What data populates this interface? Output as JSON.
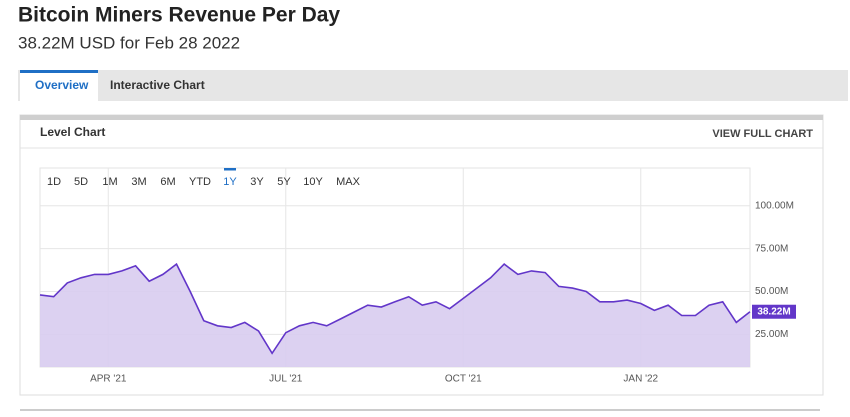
{
  "header": {
    "title": "Bitcoin Miners Revenue Per Day",
    "subtitle": "38.22M USD for Feb 28 2022"
  },
  "tabs": [
    {
      "label": "Overview",
      "active": true
    },
    {
      "label": "Interactive Chart",
      "active": false
    }
  ],
  "panel": {
    "title": "Level Chart",
    "link": "VIEW FULL CHART"
  },
  "range_buttons": {
    "labels": [
      "1D",
      "5D",
      "1M",
      "3M",
      "6M",
      "YTD",
      "1Y",
      "3Y",
      "5Y",
      "10Y",
      "MAX"
    ],
    "active": "1Y"
  },
  "chart_data": {
    "type": "area",
    "categories": [
      null,
      null,
      null,
      null,
      null,
      "APR '21",
      null,
      null,
      null,
      null,
      null,
      null,
      null,
      null,
      null,
      null,
      null,
      null,
      "JUL '21",
      null,
      null,
      null,
      null,
      null,
      null,
      null,
      null,
      null,
      null,
      null,
      null,
      "OCT '21",
      null,
      null,
      null,
      null,
      null,
      null,
      null,
      null,
      null,
      null,
      null,
      null,
      "JAN '22",
      null,
      null,
      null,
      null,
      null,
      null,
      null,
      null
    ],
    "series": [
      {
        "name": "Bitcoin Miners Revenue Per Day",
        "color": "#6236c9",
        "fill": "#d8ccf0",
        "values": [
          48,
          47,
          55,
          58,
          60,
          60,
          62,
          65,
          56,
          60,
          66,
          50,
          33,
          30,
          29,
          32,
          27,
          14,
          26,
          30,
          32,
          30,
          34,
          38,
          42,
          41,
          44,
          47,
          42,
          44,
          40,
          46,
          52,
          58,
          66,
          60,
          62,
          61,
          53,
          52,
          50,
          44,
          44,
          45,
          43,
          39,
          42,
          36,
          36,
          42,
          44,
          32,
          38.22
        ],
        "value_labels": [
          null,
          null,
          null,
          null,
          null,
          null,
          null,
          null,
          null,
          null,
          null,
          null,
          null,
          null,
          null,
          null,
          null,
          null,
          null,
          null,
          null,
          null,
          null,
          null,
          null,
          null,
          null,
          null,
          null,
          null,
          null,
          null,
          null,
          null,
          null,
          null,
          null,
          null,
          null,
          null,
          null,
          null,
          null,
          null,
          null,
          null,
          null,
          null,
          null,
          null,
          null,
          null,
          "38.22M"
        ]
      }
    ],
    "ylim": [
      6,
      122
    ],
    "yticks": [
      {
        "value": 25,
        "label": "25.00M"
      },
      {
        "value": 50,
        "label": "50.00M"
      },
      {
        "value": 75,
        "label": "75.00M"
      },
      {
        "value": 100,
        "label": "100.00M"
      }
    ],
    "grid": true
  }
}
